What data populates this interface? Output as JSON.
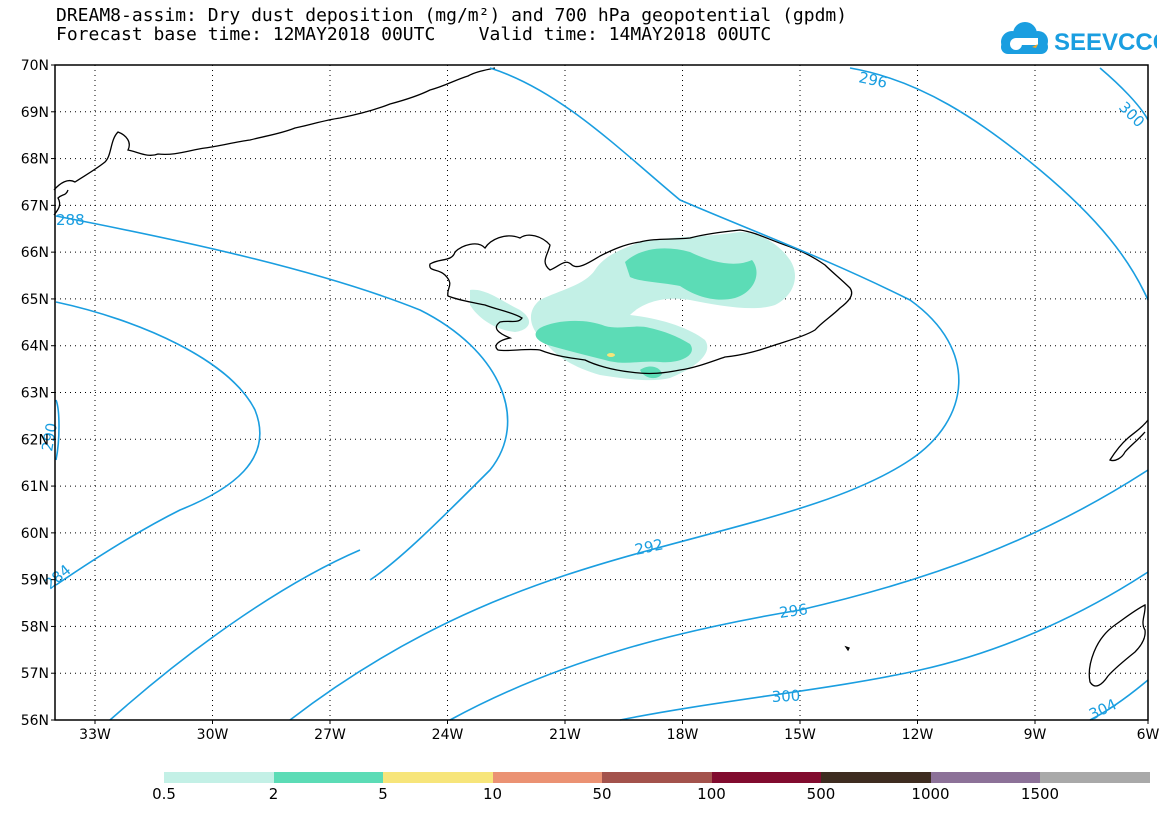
{
  "header": {
    "title_line1": "DREAM8-assim: Dry dust deposition (mg/m²) and 700 hPa geopotential (gpdm)",
    "title_line2": "Forecast base time: 12MAY2018 00UTC    Valid time: 14MAY2018 00UTC"
  },
  "logo": {
    "text": "SEEVCCC",
    "icon": "cloud-logo-icon",
    "color": "#1a9ee0"
  },
  "axes": {
    "lat_labels": [
      "70N",
      "69N",
      "68N",
      "67N",
      "66N",
      "65N",
      "64N",
      "63N",
      "62N",
      "61N",
      "60N",
      "59N",
      "58N",
      "57N",
      "56N"
    ],
    "lon_labels": [
      "33W",
      "30W",
      "27W",
      "24W",
      "21W",
      "18W",
      "15W",
      "12W",
      "9W",
      "6W"
    ]
  },
  "contours": {
    "color": "#1a9ee0",
    "labels": [
      "296",
      "300",
      "288",
      "290",
      "284",
      "292",
      "296",
      "300",
      "304"
    ]
  },
  "legend": {
    "colors": [
      "#c3f0e6",
      "#5cdcb6",
      "#f7e57a",
      "#eb9273",
      "#a3524c",
      "#810b2e",
      "#3e2c20",
      "#8c7198",
      "#a9a9a9"
    ],
    "labels": [
      "0.5",
      "2",
      "5",
      "10",
      "50",
      "100",
      "500",
      "1000",
      "1500"
    ]
  }
}
